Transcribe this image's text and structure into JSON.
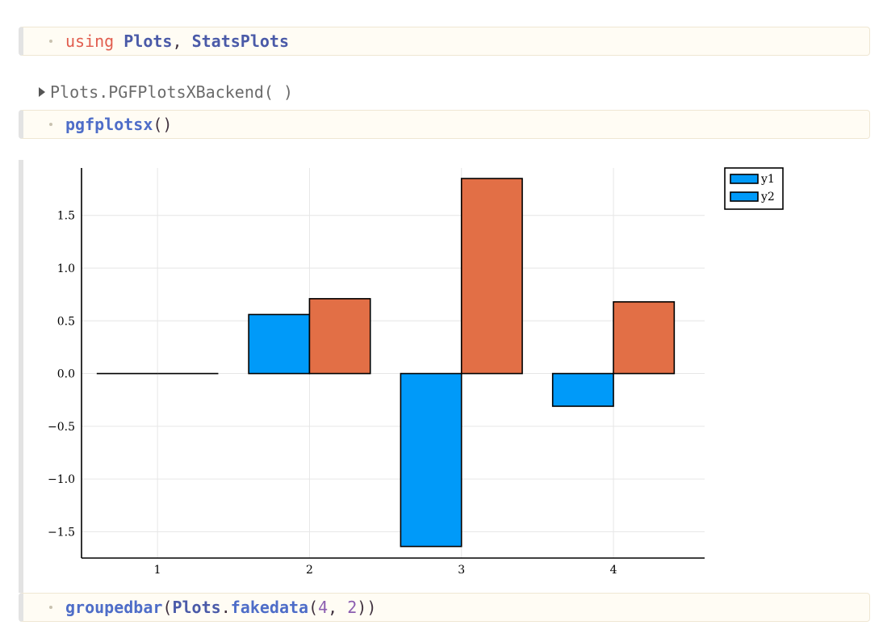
{
  "cell1": {
    "kw": "using",
    "p1": "Plots",
    "sep": ", ",
    "p2": "StatsPlots"
  },
  "output1": {
    "text": "Plots.PGFPlotsXBackend(   )"
  },
  "cell2": {
    "fn": "pgfplotsx",
    "args": "()"
  },
  "cell3": {
    "fn": "groupedbar",
    "open": "(",
    "mod": "Plots",
    "dot": ".",
    "fn2": "fakedata",
    "open2": "(",
    "n1": "4",
    "sep": ", ",
    "n2": "2",
    "close": "))"
  },
  "chart_data": {
    "type": "bar",
    "categories": [
      "1",
      "2",
      "3",
      "4"
    ],
    "series": [
      {
        "name": "y1",
        "values": [
          0.0,
          0.56,
          -1.64,
          -0.31
        ],
        "color": "#009af9"
      },
      {
        "name": "y2",
        "values": [
          0.0,
          0.71,
          1.85,
          0.68
        ],
        "color": "#e26f46"
      }
    ],
    "yticks": [
      "1.5",
      "1.0",
      "0.5",
      "0.0",
      "−0.5",
      "−1.0",
      "−1.5"
    ],
    "ytick_values": [
      1.5,
      1.0,
      0.5,
      0.0,
      -0.5,
      -1.0,
      -1.5
    ],
    "ylim": [
      -1.75,
      1.95
    ],
    "xlim": [
      0.5,
      4.6
    ],
    "grid": true,
    "legend_position": "top-right"
  }
}
